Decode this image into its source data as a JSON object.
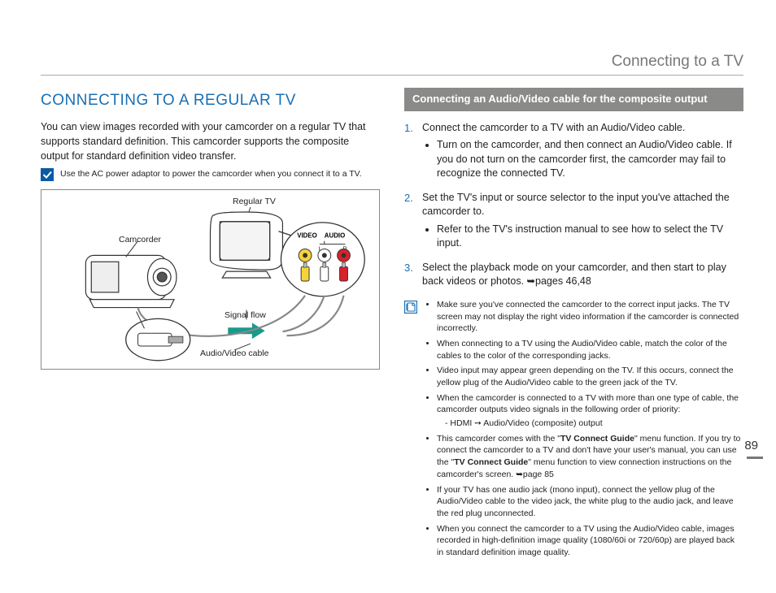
{
  "header": {
    "section_title": "Connecting to a TV"
  },
  "left": {
    "heading": "CONNECTING TO A REGULAR TV",
    "intro": "You can view images recorded with your camcorder on a regular TV that supports standard definition. This camcorder supports the composite output for standard definition video transfer.",
    "tip": "Use the AC power adaptor to power the camcorder when you connect it to a TV.",
    "diagram": {
      "tv_label": "Regular TV",
      "cam_label": "Camcorder",
      "video_label": "VIDEO",
      "audio_label": "AUDIO",
      "lr_l": "L",
      "lr_r": "R",
      "flow_label": "Signal flow",
      "cable_label": "Audio/Video cable",
      "colors": {
        "yellow": "#f6d33a",
        "white": "#ffffff",
        "red": "#d9212b",
        "outline": "#222222",
        "arrow": "#1a9a8a"
      }
    }
  },
  "right": {
    "bar": "Connecting an Audio/Video cable for the composite output",
    "steps": [
      {
        "text": "Connect the camcorder to a TV with an Audio/Video cable.",
        "sub": [
          "Turn on the camcorder, and then connect an Audio/Video cable. If you do not turn on the camcorder first, the camcorder may fail to recognize the connected TV."
        ]
      },
      {
        "text": "Set the TV's input or source selector to the input you've attached the camcorder to.",
        "sub": [
          "Refer to the TV's instruction manual to see how to select the TV input."
        ]
      },
      {
        "text_html": "Select the playback mode on your camcorder, and then start to play back videos or photos. ➥pages 46,48",
        "sub": []
      }
    ],
    "notes": [
      "Make sure you've connected the camcorder to the correct input jacks. The TV screen may not display the right video information if the camcorder is connected incorrectly.",
      "When connecting to a TV using the Audio/Video cable, match the color of the cables to the color of the corresponding jacks.",
      "Video input may appear green depending on the TV. If this occurs, connect the yellow plug of the Audio/Video cable to the green jack of the TV.",
      "When the camcorder is connected to a TV with more than one type of cable, the camcorder outputs video signals in the following order of priority:",
      "This camcorder comes with the \"<b>TV Connect Guide</b>\" menu function. If you try to connect the camcorder to a TV and don't have your user's manual, you can use the \"<b>TV Connect Guide</b>\" menu function to view connection instructions on the camcorder's screen. ➥page 85",
      "If your TV has one audio jack (mono input), connect the yellow plug of the Audio/Video cable to the video jack, the white plug to the audio jack, and leave the red plug unconnected.",
      "When you connect the camcorder to a TV using the Audio/Video cable, images recorded in high-definition image quality (1080/60i or 720/60p) are played back in standard definition image quality."
    ],
    "priority_line": "-   HDMI ➙ Audio/Video (composite) output"
  },
  "page_number": "89"
}
